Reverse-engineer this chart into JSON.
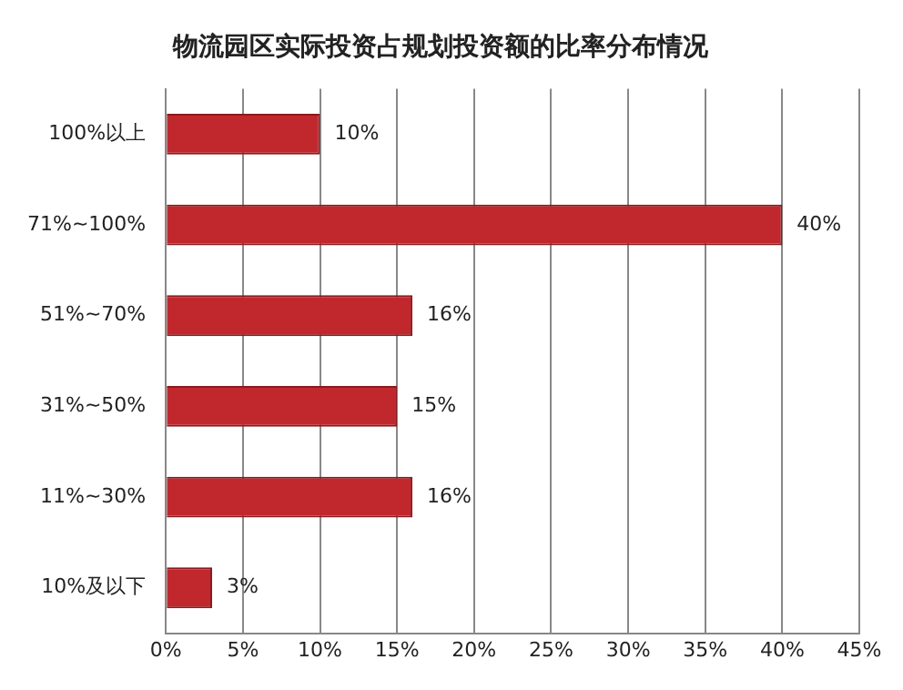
{
  "chart_data": {
    "type": "bar",
    "orientation": "horizontal",
    "title": "物流园区实际投资占规划投资额的比率分布情况",
    "categories": [
      "100%以上",
      "71%~100%",
      "51%~70%",
      "31%~50%",
      "11%~30%",
      "10%及以下"
    ],
    "values": [
      10,
      40,
      16,
      15,
      16,
      3
    ],
    "value_labels": [
      "10%",
      "40%",
      "16%",
      "15%",
      "16%",
      "3%"
    ],
    "color": "#c0282e",
    "xlim": [
      0,
      45
    ],
    "xticks": [
      {
        "value": 0,
        "label": "0%"
      },
      {
        "value": 5,
        "label": "5%"
      },
      {
        "value": 10,
        "label": "10%"
      },
      {
        "value": 15,
        "label": "15%"
      },
      {
        "value": 20,
        "label": "20%"
      },
      {
        "value": 25,
        "label": "25%"
      },
      {
        "value": 30,
        "label": "30%"
      },
      {
        "value": 35,
        "label": "35%"
      },
      {
        "value": 40,
        "label": "40%"
      },
      {
        "value": 45,
        "label": "45%"
      }
    ],
    "grid": "x",
    "legend": false
  }
}
